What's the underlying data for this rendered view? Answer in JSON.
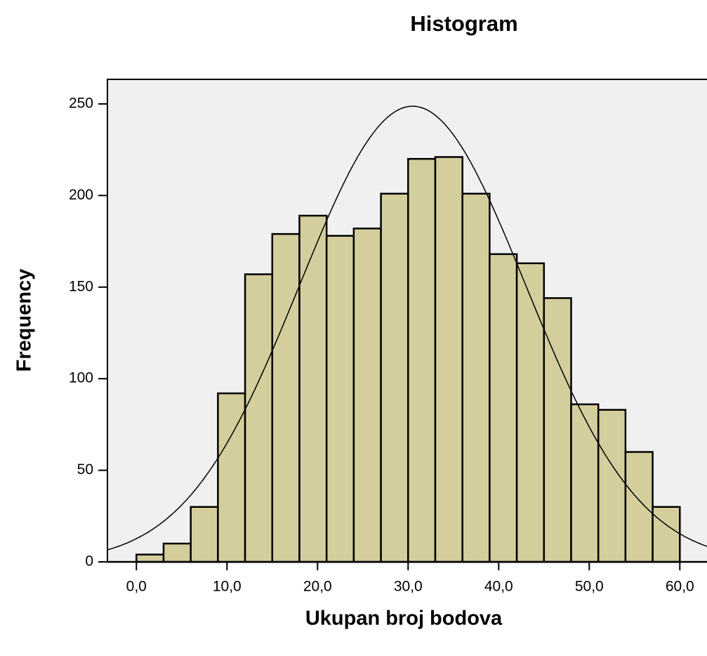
{
  "chart_data": {
    "type": "histogram",
    "title": "Histogram",
    "x_label": "Ukupan broj bodova",
    "y_label": "Frequency",
    "bins": [
      0,
      3,
      6,
      9,
      12,
      15,
      18,
      21,
      24,
      27,
      30,
      33,
      36,
      39,
      42,
      45,
      48,
      51,
      54,
      57,
      60
    ],
    "values": [
      4,
      10,
      30,
      92,
      157,
      179,
      189,
      178,
      182,
      201,
      220,
      221,
      201,
      168,
      163,
      144,
      86,
      83,
      60,
      30
    ],
    "color": "#d3ce9c",
    "curve": {
      "mean": 30.5,
      "std_dev": 12.5
    },
    "xlim": [
      -3.2,
      63
    ],
    "ylim": [
      0,
      263.4
    ],
    "xticks": [
      {
        "value": 0,
        "label": "0,0"
      },
      {
        "value": 10,
        "label": "10,0"
      },
      {
        "value": 20,
        "label": "20,0"
      },
      {
        "value": 30,
        "label": "30,0"
      },
      {
        "value": 40,
        "label": "40,0"
      },
      {
        "value": 50,
        "label": "50,0"
      },
      {
        "value": 60,
        "label": "60,0"
      }
    ],
    "yticks": [
      0,
      50,
      100,
      150,
      200,
      250
    ]
  }
}
